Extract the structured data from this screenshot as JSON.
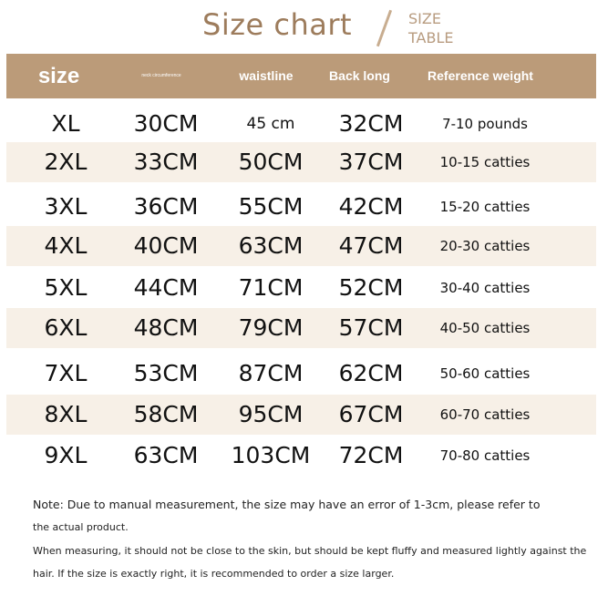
{
  "title": "Size chart",
  "subtitle": [
    "SIZE",
    "TABLE"
  ],
  "colors": {
    "header_bg": "#bb9b79",
    "title": "#9d7c5c",
    "alt_row": "#f7f0e7"
  },
  "headers": [
    "size",
    "neck circumference",
    "waistline",
    "Back long",
    "Reference weight"
  ],
  "rows": [
    [
      "XL",
      "30CM",
      "45 cm",
      "32CM",
      "7-10 pounds"
    ],
    [
      "2XL",
      "33CM",
      "50CM",
      "37CM",
      "10-15 catties"
    ],
    [
      "3XL",
      "36CM",
      "55CM",
      "42CM",
      "15-20 catties"
    ],
    [
      "4XL",
      "40CM",
      "63CM",
      "47CM",
      "20-30 catties"
    ],
    [
      "5XL",
      "44CM",
      "71CM",
      "52CM",
      "30-40 catties"
    ],
    [
      "6XL",
      "48CM",
      "79CM",
      "57CM",
      "40-50 catties"
    ],
    [
      "7XL",
      "53CM",
      "87CM",
      "62CM",
      "50-60 catties"
    ],
    [
      "8XL",
      "58CM",
      "95CM",
      "67CM",
      "60-70 catties"
    ],
    [
      "9XL",
      "63CM",
      "103CM",
      "72CM",
      "70-80 catties"
    ]
  ],
  "notes": [
    "Note: Due to manual measurement, the size may have an error of 1-3cm, please refer to",
    "the actual product.",
    "When measuring, it should not be close to the skin, but should be kept fluffy and measured lightly against the",
    "hair. If the size is exactly right, it is recommended to order a size larger."
  ]
}
